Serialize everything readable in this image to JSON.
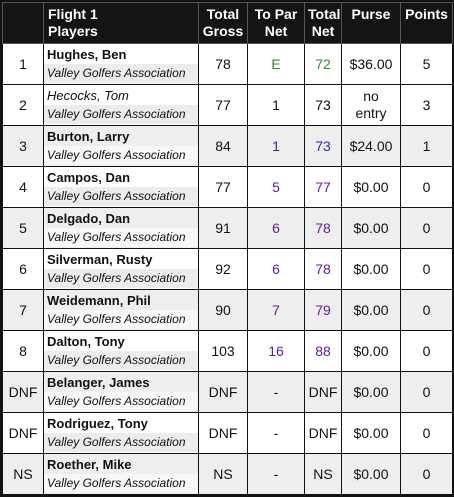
{
  "colors": {
    "header_bg": "#141414",
    "green": "#2e8b3a",
    "blue": "#2233aa",
    "purple": "#6a1b9a"
  },
  "headers": {
    "players_line1": "Flight 1",
    "players_line2": "Players",
    "gross_line1": "Total",
    "gross_line2": "Gross",
    "topar_line1": "To Par",
    "topar_line2": "Net",
    "net_line1": "Total",
    "net_line2": "Net",
    "purse": "Purse",
    "points": "Points"
  },
  "rows": [
    {
      "pos": "1",
      "name": "Hughes, Ben",
      "assoc": "Valley Golfers Association",
      "gross": "78",
      "topar": "E",
      "net": "72",
      "purse": "$36.00",
      "points": "5",
      "color": "green",
      "name_italic": false,
      "alt": false
    },
    {
      "pos": "2",
      "name": "Hecocks, Tom",
      "assoc": "Valley Golfers Association",
      "gross": "77",
      "topar": "1",
      "net": "73",
      "purse_line1": "no",
      "purse_line2": "entry",
      "points": "3",
      "color": "black",
      "name_italic": true,
      "alt": false
    },
    {
      "pos": "3",
      "name": "Burton, Larry",
      "assoc": "Valley Golfers Association",
      "gross": "84",
      "topar": "1",
      "net": "73",
      "purse": "$24.00",
      "points": "1",
      "color": "blue",
      "name_italic": false,
      "alt": true
    },
    {
      "pos": "4",
      "name": "Campos, Dan",
      "assoc": "Valley Golfers Association",
      "gross": "77",
      "topar": "5",
      "net": "77",
      "purse": "$0.00",
      "points": "0",
      "color": "purple",
      "name_italic": false,
      "alt": false
    },
    {
      "pos": "5",
      "name": "Delgado, Dan",
      "assoc": "Valley Golfers Association",
      "gross": "91",
      "topar": "6",
      "net": "78",
      "purse": "$0.00",
      "points": "0",
      "color": "purple",
      "name_italic": false,
      "alt": true
    },
    {
      "pos": "6",
      "name": "Silverman, Rusty",
      "assoc": "Valley Golfers Association",
      "gross": "92",
      "topar": "6",
      "net": "78",
      "purse": "$0.00",
      "points": "0",
      "color": "purple",
      "name_italic": false,
      "alt": false
    },
    {
      "pos": "7",
      "name": "Weidemann, Phil",
      "assoc": "Valley Golfers Association",
      "gross": "90",
      "topar": "7",
      "net": "79",
      "purse": "$0.00",
      "points": "0",
      "color": "purple",
      "name_italic": false,
      "alt": true
    },
    {
      "pos": "8",
      "name": "Dalton, Tony",
      "assoc": "Valley Golfers Association",
      "gross": "103",
      "topar": "16",
      "net": "88",
      "purse": "$0.00",
      "points": "0",
      "color": "purple",
      "name_italic": false,
      "alt": false
    },
    {
      "pos": "DNF",
      "name": "Belanger, James",
      "assoc": "Valley Golfers Association",
      "gross": "DNF",
      "topar": "-",
      "net": "DNF",
      "purse": "$0.00",
      "points": "0",
      "color": "black",
      "name_italic": false,
      "alt": true
    },
    {
      "pos": "DNF",
      "name": "Rodriguez, Tony",
      "assoc": "Valley Golfers Association",
      "gross": "DNF",
      "topar": "-",
      "net": "DNF",
      "purse": "$0.00",
      "points": "0",
      "color": "black",
      "name_italic": false,
      "alt": false
    },
    {
      "pos": "NS",
      "name": "Roether, Mike",
      "assoc": "Valley Golfers Association",
      "gross": "NS",
      "topar": "-",
      "net": "NS",
      "purse": "$0.00",
      "points": "0",
      "color": "black",
      "name_italic": false,
      "alt": true
    }
  ]
}
